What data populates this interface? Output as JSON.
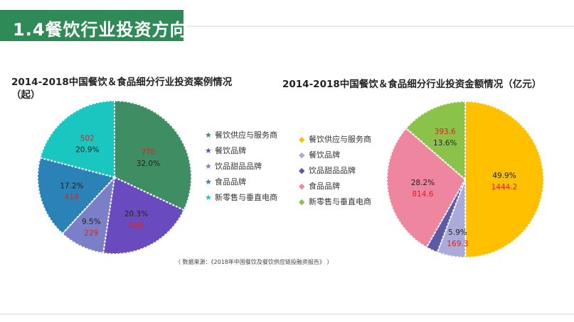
{
  "header": {
    "title": "1.4餐饮行业投资方向"
  },
  "source": "（ 数据来源：《2018年中国餐饮及餐饮供应链投融资报告》 ）",
  "chart_data": [
    {
      "type": "pie",
      "title": "2014-2018中国餐饮＆食品细分行业投资案例情况",
      "title_line2": "（起）",
      "slices": [
        {
          "name": "餐饮供应与服务商",
          "value": 770,
          "percent": "32.0%",
          "color": "#3f8e63"
        },
        {
          "name": "餐饮品牌",
          "value": 488,
          "percent": "20.3%",
          "color": "#6a4bbf"
        },
        {
          "name": "饮品甜品品牌",
          "value": 229,
          "percent": "9.5%",
          "color": "#7b7fc7"
        },
        {
          "name": "食品品牌",
          "value": 414,
          "percent": "17.2%",
          "color": "#2a82b7"
        },
        {
          "name": "新零售与垂直电商",
          "value": 502,
          "percent": "20.9%",
          "color": "#19c6c0"
        }
      ],
      "legend_position": "right"
    },
    {
      "type": "pie",
      "title": "2014-2018中国餐饮＆食品细分行业投资金额情况（亿元）",
      "slices": [
        {
          "name": "餐饮供应与服务商",
          "value": 1444.2,
          "percent": "49.9%",
          "color": "#ffc000"
        },
        {
          "name": "餐饮品牌",
          "value": 169.3,
          "percent": "5.9%",
          "color": "#a9acd8"
        },
        {
          "name": "饮品甜品品牌",
          "value": 69.6,
          "percent": "2.4%",
          "color": "#5b5aa6"
        },
        {
          "name": "食品品牌",
          "value": 814.6,
          "percent": "28.2%",
          "color": "#ee86a0"
        },
        {
          "name": "新零售与垂直电商",
          "value": 393.6,
          "percent": "13.6%",
          "color": "#8bc34a"
        }
      ],
      "legend_position": "left"
    }
  ]
}
